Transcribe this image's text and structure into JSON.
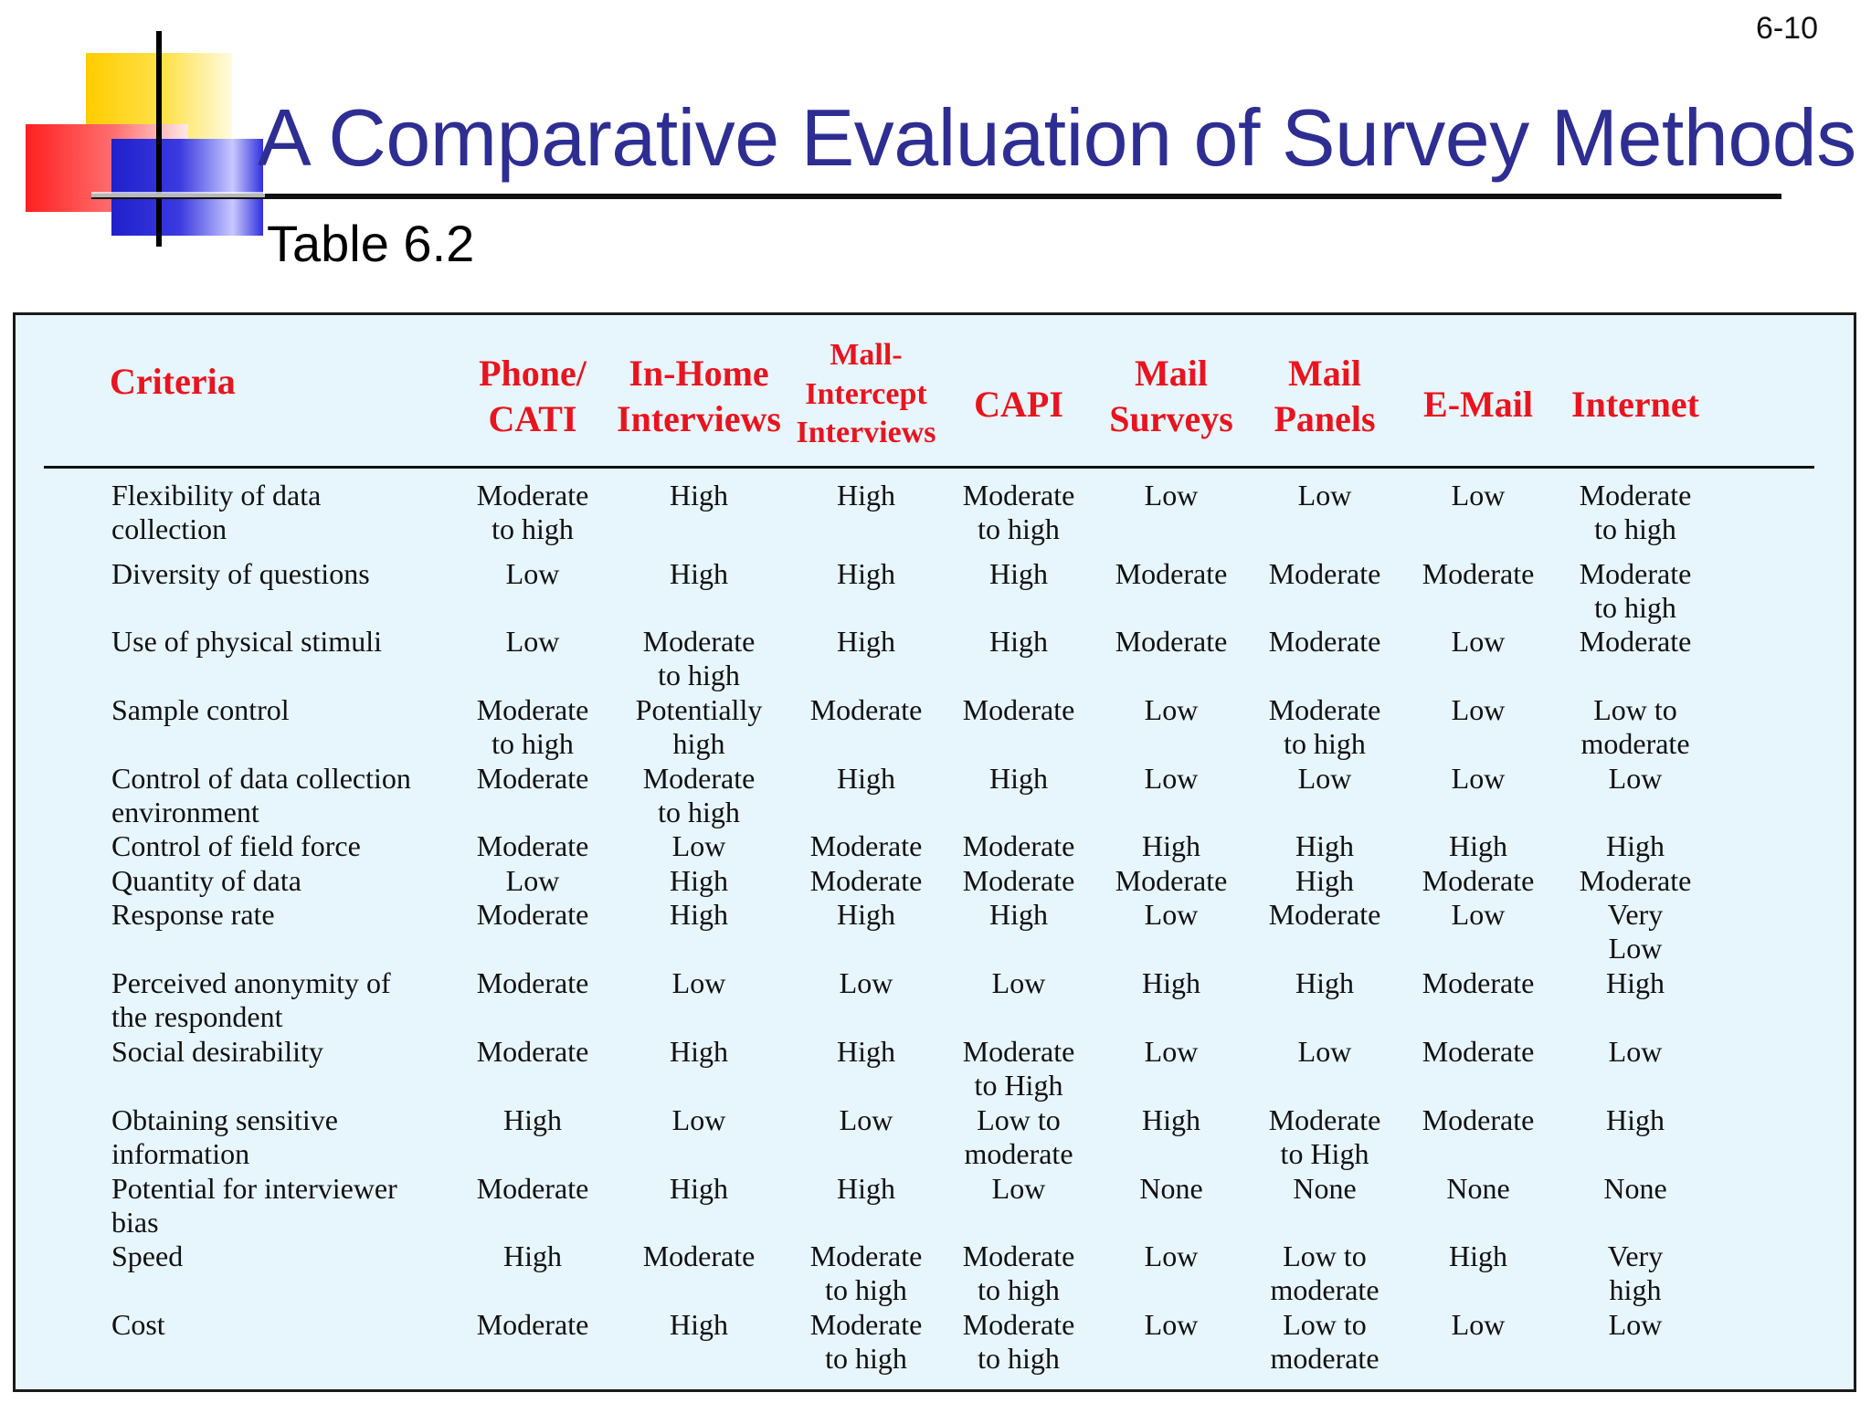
{
  "page_number": "6-10",
  "title": "A Comparative Evaluation of Survey Methods",
  "subtitle": "Table 6.2",
  "table": {
    "criteria_header": "Criteria",
    "columns": [
      {
        "label": "Phone/\nCATI"
      },
      {
        "label": "In-Home\nInterviews"
      },
      {
        "label": "Mall-\nIntercept\nInterviews"
      },
      {
        "label": "CAPI"
      },
      {
        "label": "Mail\nSurveys"
      },
      {
        "label": "Mail\nPanels"
      },
      {
        "label": "E-Mail"
      },
      {
        "label": "Internet"
      }
    ],
    "rows": [
      {
        "criterion": "Flexibility of data\ncollection",
        "values": [
          "Moderate\nto high",
          "High",
          "High",
          "Moderate\nto high",
          "Low",
          "Low",
          "Low",
          "Moderate\nto high"
        ]
      },
      {
        "criterion": "Diversity of questions",
        "values": [
          "Low",
          "High",
          "High",
          "High",
          "Moderate",
          "Moderate",
          "Moderate",
          "Moderate\nto high"
        ]
      },
      {
        "criterion": "Use of physical stimuli",
        "values": [
          "Low",
          "Moderate\nto high",
          "High",
          "High",
          "Moderate",
          "Moderate",
          "Low",
          "Moderate"
        ]
      },
      {
        "criterion": "Sample control",
        "values": [
          "Moderate\nto high",
          "Potentially\nhigh",
          "Moderate",
          "Moderate",
          "Low",
          "Moderate\nto high",
          "Low",
          "Low to\nmoderate"
        ]
      },
      {
        "criterion": "Control of data collection\nenvironment",
        "values": [
          "Moderate",
          "Moderate\nto high",
          "High",
          "High",
          "Low",
          "Low",
          "Low",
          "Low"
        ]
      },
      {
        "criterion": "Control of field force",
        "values": [
          "Moderate",
          "Low",
          "Moderate",
          "Moderate",
          "High",
          "High",
          "High",
          "High"
        ]
      },
      {
        "criterion": "Quantity of data",
        "values": [
          "Low",
          "High",
          "Moderate",
          "Moderate",
          "Moderate",
          "High",
          "Moderate",
          "Moderate"
        ]
      },
      {
        "criterion": "Response rate",
        "values": [
          "Moderate",
          "High",
          "High",
          "High",
          "Low",
          "Moderate",
          "Low",
          "Very\nLow"
        ]
      },
      {
        "criterion": "Perceived anonymity of\nthe respondent",
        "values": [
          "Moderate",
          "Low",
          "Low",
          "Low",
          "High",
          "High",
          "Moderate",
          "High"
        ]
      },
      {
        "criterion": "Social desirability",
        "values": [
          "Moderate",
          "High",
          "High",
          "Moderate\nto High",
          "Low",
          "Low",
          "Moderate",
          "Low"
        ]
      },
      {
        "criterion": "Obtaining sensitive\ninformation",
        "values": [
          "High",
          "Low",
          "Low",
          "Low to\nmoderate",
          "High",
          "Moderate\nto High",
          "Moderate",
          "High"
        ]
      },
      {
        "criterion": "Potential for interviewer\nbias",
        "values": [
          "Moderate",
          "High",
          "High",
          "Low",
          "None",
          "None",
          "None",
          "None"
        ]
      },
      {
        "criterion": "Speed",
        "values": [
          "High",
          "Moderate",
          "Moderate\nto high",
          "Moderate\nto high",
          "Low",
          "Low to\nmoderate",
          "High",
          "Very\nhigh"
        ]
      },
      {
        "criterion": "Cost",
        "values": [
          "Moderate",
          "High",
          "Moderate\nto high",
          "Moderate\nto high",
          "Low",
          "Low to\nmoderate",
          "Low",
          "Low"
        ]
      }
    ]
  }
}
